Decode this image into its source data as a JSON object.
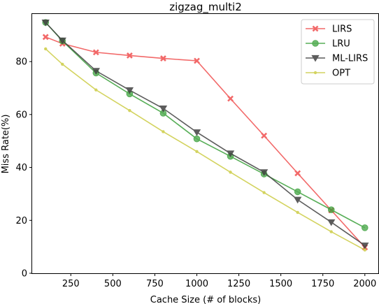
{
  "chart_data": {
    "type": "line",
    "title": "zigzag_multi2",
    "xlabel": "Cache Size (# of blocks)",
    "ylabel": "Miss Rate(%)",
    "xlim": [
      20,
      2080
    ],
    "ylim": [
      0,
      98
    ],
    "xticks": [
      250,
      500,
      750,
      1000,
      1250,
      1500,
      1750,
      2000
    ],
    "yticks": [
      0,
      20,
      40,
      60,
      80
    ],
    "x": [
      100,
      200,
      400,
      600,
      800,
      1000,
      1200,
      1400,
      1600,
      1800,
      2000
    ],
    "legend_position": "top-right",
    "grid": false,
    "series": [
      {
        "name": "LIRS",
        "color": "#f05050",
        "marker": "x",
        "values": [
          89.3,
          86.8,
          83.5,
          82.3,
          81.2,
          80.3,
          66.0,
          52.0,
          37.8,
          23.8,
          9.8
        ]
      },
      {
        "name": "LRU",
        "color": "#3aa03a",
        "marker": "circle",
        "values": [
          94.8,
          87.8,
          75.7,
          67.8,
          60.5,
          50.8,
          44.2,
          37.5,
          30.8,
          24.0,
          17.2
        ]
      },
      {
        "name": "ML-LIRS",
        "color": "#404040",
        "marker": "triangle-down",
        "values": [
          94.8,
          88.0,
          76.5,
          69.2,
          62.3,
          53.3,
          45.3,
          38.2,
          27.8,
          19.3,
          10.5
        ]
      },
      {
        "name": "OPT",
        "color": "#cccc44",
        "marker": "dot",
        "values": [
          84.8,
          79.0,
          69.3,
          61.5,
          53.5,
          46.0,
          38.2,
          30.5,
          23.0,
          15.7,
          8.8
        ]
      }
    ]
  }
}
